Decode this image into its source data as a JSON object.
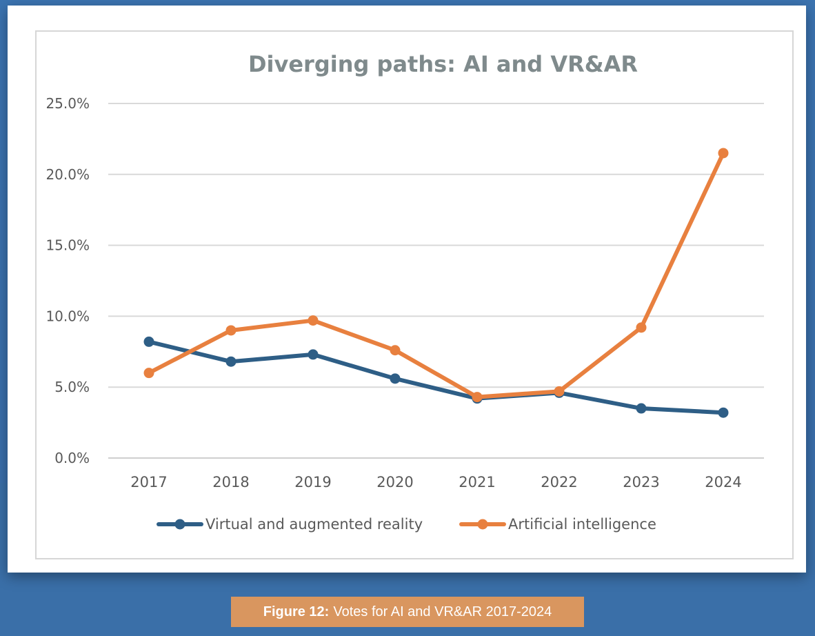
{
  "caption": {
    "prefix": "Figure 12:",
    "text": "Votes for AI and VR&AR 2017-2024"
  },
  "chart_data": {
    "type": "line",
    "title": "Diverging paths: AI and VR&AR",
    "xlabel": "",
    "ylabel": "",
    "categories": [
      "2017",
      "2018",
      "2019",
      "2020",
      "2021",
      "2022",
      "2023",
      "2024"
    ],
    "ylim": [
      0,
      25
    ],
    "yticks": [
      "0.0%",
      "5.0%",
      "10.0%",
      "15.0%",
      "20.0%",
      "25.0%"
    ],
    "grid": true,
    "legend": "bottom",
    "series": [
      {
        "name": "Virtual and augmented reality",
        "color": "#2e5e86",
        "values": [
          8.2,
          6.8,
          7.3,
          5.6,
          4.2,
          4.6,
          3.5,
          3.2
        ]
      },
      {
        "name": "Artificial intelligence",
        "color": "#e8803f",
        "values": [
          6.0,
          9.0,
          9.7,
          7.6,
          4.3,
          4.7,
          9.2,
          21.5
        ]
      }
    ]
  }
}
